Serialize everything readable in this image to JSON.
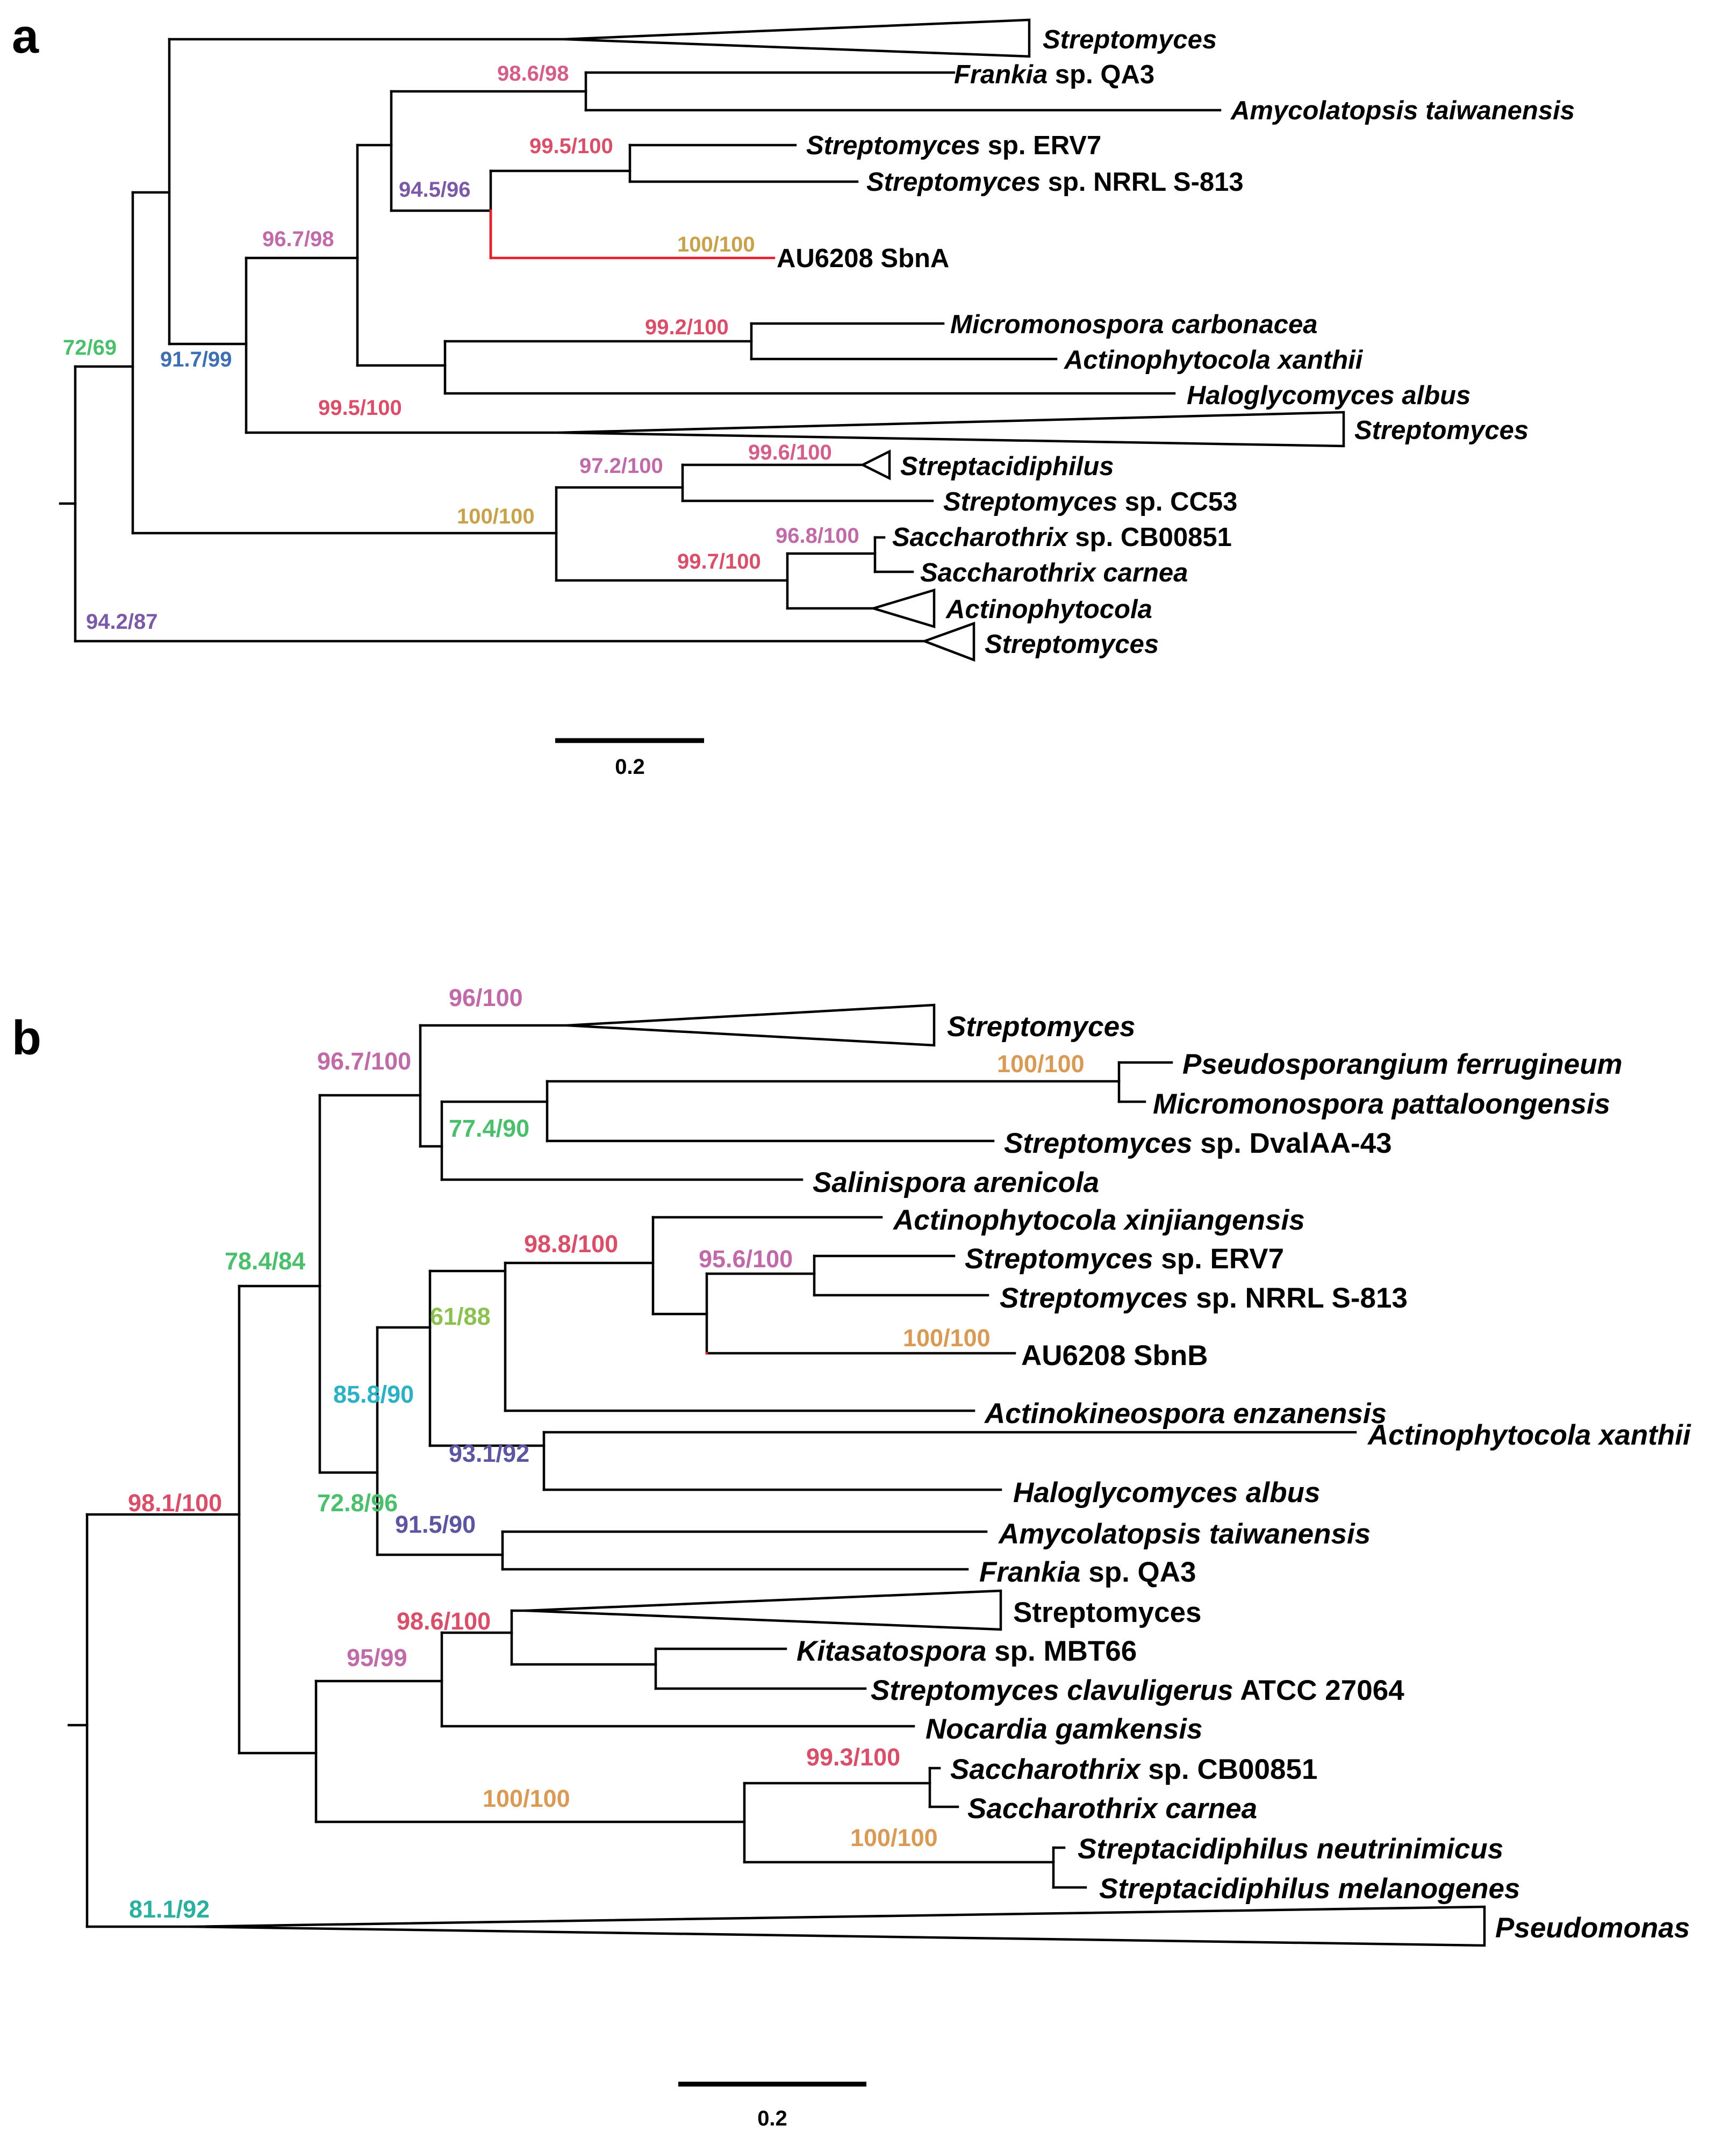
{
  "figure": {
    "panels": [
      {
        "id": "a",
        "letter": "a",
        "scale_label": "0.2",
        "taxa": [
          {
            "id": "strep_top",
            "parts": [
              {
                "t": "Streptomyces",
                "i": true
              }
            ]
          },
          {
            "id": "frankia",
            "parts": [
              {
                "t": "Frankia",
                "i": true
              },
              {
                "t": " sp. QA3",
                "i": false
              }
            ]
          },
          {
            "id": "amycolatopsis",
            "parts": [
              {
                "t": "Amycolatopsis taiwanensis",
                "i": true
              }
            ]
          },
          {
            "id": "erv7",
            "parts": [
              {
                "t": "Streptomyces",
                "i": true
              },
              {
                "t": " sp. ERV7",
                "i": false
              }
            ]
          },
          {
            "id": "nrrl",
            "parts": [
              {
                "t": "Streptomyces",
                "i": true
              },
              {
                "t": " sp. NRRL S-813",
                "i": false
              }
            ]
          },
          {
            "id": "au6208",
            "parts": [
              {
                "t": "AU6208 SbnA",
                "i": false
              }
            ],
            "highlight": true
          },
          {
            "id": "micromono",
            "parts": [
              {
                "t": "Micromonospora carbonacea",
                "i": true
              }
            ]
          },
          {
            "id": "actino_xan",
            "parts": [
              {
                "t": "Actinophytocola xanthii",
                "i": true
              }
            ]
          },
          {
            "id": "haloglyco",
            "parts": [
              {
                "t": "Haloglycomyces albus",
                "i": true
              }
            ]
          },
          {
            "id": "strep_mid",
            "parts": [
              {
                "t": "Streptomyces",
                "i": true
              }
            ]
          },
          {
            "id": "streptacid",
            "parts": [
              {
                "t": "Streptacidiphilus",
                "i": true
              }
            ]
          },
          {
            "id": "cc53",
            "parts": [
              {
                "t": "Streptomyces",
                "i": true
              },
              {
                "t": " sp. CC53",
                "i": false
              }
            ]
          },
          {
            "id": "sacch_cb",
            "parts": [
              {
                "t": "Saccharothrix",
                "i": true
              },
              {
                "t": " sp. CB00851",
                "i": false
              }
            ]
          },
          {
            "id": "sacch_carnea",
            "parts": [
              {
                "t": "Saccharothrix carnea",
                "i": true
              }
            ]
          },
          {
            "id": "actinophytocola",
            "parts": [
              {
                "t": "Actinophytocola",
                "i": true
              }
            ]
          },
          {
            "id": "strep_bot",
            "parts": [
              {
                "t": "Streptomyces",
                "i": true
              }
            ]
          }
        ],
        "supports": [
          {
            "text": "98.6/98",
            "color": "#d45d8a"
          },
          {
            "text": "99.5/100",
            "color": "#d94f6a"
          },
          {
            "text": "94.5/96",
            "color": "#7c59a8"
          },
          {
            "text": "100/100",
            "color": "#c8a24a"
          },
          {
            "text": "96.7/98",
            "color": "#c06aa8"
          },
          {
            "text": "99.2/100",
            "color": "#d94f6a"
          },
          {
            "text": "72/69",
            "color": "#4cbf6c"
          },
          {
            "text": "91.7/99",
            "color": "#3f6fb3"
          },
          {
            "text": "99.5/100",
            "color": "#d94f6a"
          },
          {
            "text": "99.6/100",
            "color": "#d45d8a"
          },
          {
            "text": "97.2/100",
            "color": "#c06aa8"
          },
          {
            "text": "100/100",
            "color": "#c8a24a"
          },
          {
            "text": "96.8/100",
            "color": "#c06aa8"
          },
          {
            "text": "99.7/100",
            "color": "#d94f6a"
          },
          {
            "text": "94.2/87",
            "color": "#7c59a8"
          }
        ]
      },
      {
        "id": "b",
        "letter": "b",
        "scale_label": "0.2",
        "taxa": [
          {
            "id": "strep_top",
            "parts": [
              {
                "t": "Streptomyces",
                "i": true
              }
            ]
          },
          {
            "id": "pseudospor",
            "parts": [
              {
                "t": "Pseudosporangium ferrugineum",
                "i": true
              }
            ]
          },
          {
            "id": "micromono",
            "parts": [
              {
                "t": "Micromonospora pattaloongensis",
                "i": true
              }
            ]
          },
          {
            "id": "dvalaa",
            "parts": [
              {
                "t": "Streptomyces",
                "i": true
              },
              {
                "t": " sp. DvalAA-43",
                "i": false
              }
            ]
          },
          {
            "id": "salinispora",
            "parts": [
              {
                "t": "Salinispora arenicola",
                "i": true
              }
            ]
          },
          {
            "id": "actino_xinj",
            "parts": [
              {
                "t": "Actinophytocola xinjiangensis",
                "i": true
              }
            ]
          },
          {
            "id": "erv7",
            "parts": [
              {
                "t": "Streptomyces",
                "i": true
              },
              {
                "t": " sp. ERV7",
                "i": false
              }
            ]
          },
          {
            "id": "nrrl",
            "parts": [
              {
                "t": "Streptomyces",
                "i": true
              },
              {
                "t": " sp. NRRL S-813",
                "i": false
              }
            ]
          },
          {
            "id": "au6208",
            "parts": [
              {
                "t": "AU6208 SbnB",
                "i": false
              }
            ],
            "highlight": true
          },
          {
            "id": "actinokineo",
            "parts": [
              {
                "t": "Actinokineospora enzanensis",
                "i": true
              }
            ]
          },
          {
            "id": "actino_xan",
            "parts": [
              {
                "t": "Actinophytocola xanthii",
                "i": true
              }
            ]
          },
          {
            "id": "haloglyco",
            "parts": [
              {
                "t": "Haloglycomyces albus",
                "i": true
              }
            ]
          },
          {
            "id": "amycolatopsis",
            "parts": [
              {
                "t": "Amycolatopsis taiwanensis",
                "i": true
              }
            ]
          },
          {
            "id": "frankia",
            "parts": [
              {
                "t": "Frankia",
                "i": true
              },
              {
                "t": " sp. QA3",
                "i": false
              }
            ]
          },
          {
            "id": "strep_mid",
            "parts": [
              {
                "t": "Streptomyces",
                "i": false
              }
            ]
          },
          {
            "id": "kitasato",
            "parts": [
              {
                "t": "Kitasatospora",
                "i": true
              },
              {
                "t": " sp. MBT66",
                "i": false
              }
            ]
          },
          {
            "id": "clavuligerus",
            "parts": [
              {
                "t": "Streptomyces clavuligerus",
                "i": true
              },
              {
                "t": " ATCC 27064",
                "i": false
              }
            ]
          },
          {
            "id": "nocardia",
            "parts": [
              {
                "t": "Nocardia gamkensis",
                "i": true
              }
            ]
          },
          {
            "id": "sacch_cb",
            "parts": [
              {
                "t": "Saccharothrix",
                "i": true
              },
              {
                "t": " sp. CB00851",
                "i": false
              }
            ]
          },
          {
            "id": "sacch_carnea",
            "parts": [
              {
                "t": "Saccharothrix carnea",
                "i": true
              }
            ]
          },
          {
            "id": "streptacid_neut",
            "parts": [
              {
                "t": "Streptacidiphilus neutrinimicus",
                "i": true
              }
            ]
          },
          {
            "id": "streptacid_mel",
            "parts": [
              {
                "t": "Streptacidiphilus melanogenes",
                "i": true
              }
            ]
          },
          {
            "id": "pseudomonas",
            "parts": [
              {
                "t": "Pseudomonas",
                "i": true
              }
            ]
          }
        ],
        "supports": [
          {
            "text": "96/100",
            "color": "#c06aa8"
          },
          {
            "text": "96.7/100",
            "color": "#c06aa8"
          },
          {
            "text": "100/100",
            "color": "#d89a55"
          },
          {
            "text": "77.4/90",
            "color": "#4cbf6c"
          },
          {
            "text": "78.4/84",
            "color": "#4cbf6c"
          },
          {
            "text": "98.8/100",
            "color": "#d94f6a"
          },
          {
            "text": "95.6/100",
            "color": "#c06aa8"
          },
          {
            "text": "100/100",
            "color": "#d89a55"
          },
          {
            "text": "61/88",
            "color": "#8cc152"
          },
          {
            "text": "85.8/90",
            "color": "#2bb0c4"
          },
          {
            "text": "93.1/92",
            "color": "#5c55a0"
          },
          {
            "text": "98.1/100",
            "color": "#d94f6a"
          },
          {
            "text": "72.8/96",
            "color": "#4cbf6c"
          },
          {
            "text": "91.5/90",
            "color": "#5c55a0"
          },
          {
            "text": "98.6/100",
            "color": "#d94f6a"
          },
          {
            "text": "95/99",
            "color": "#c06aa8"
          },
          {
            "text": "99.3/100",
            "color": "#d94f6a"
          },
          {
            "text": "100/100",
            "color": "#d89a55"
          },
          {
            "text": "100/100",
            "color": "#d89a55"
          },
          {
            "text": "81.1/92",
            "color": "#2bb0a0"
          }
        ]
      }
    ],
    "highlight_color": "#e8202a"
  }
}
